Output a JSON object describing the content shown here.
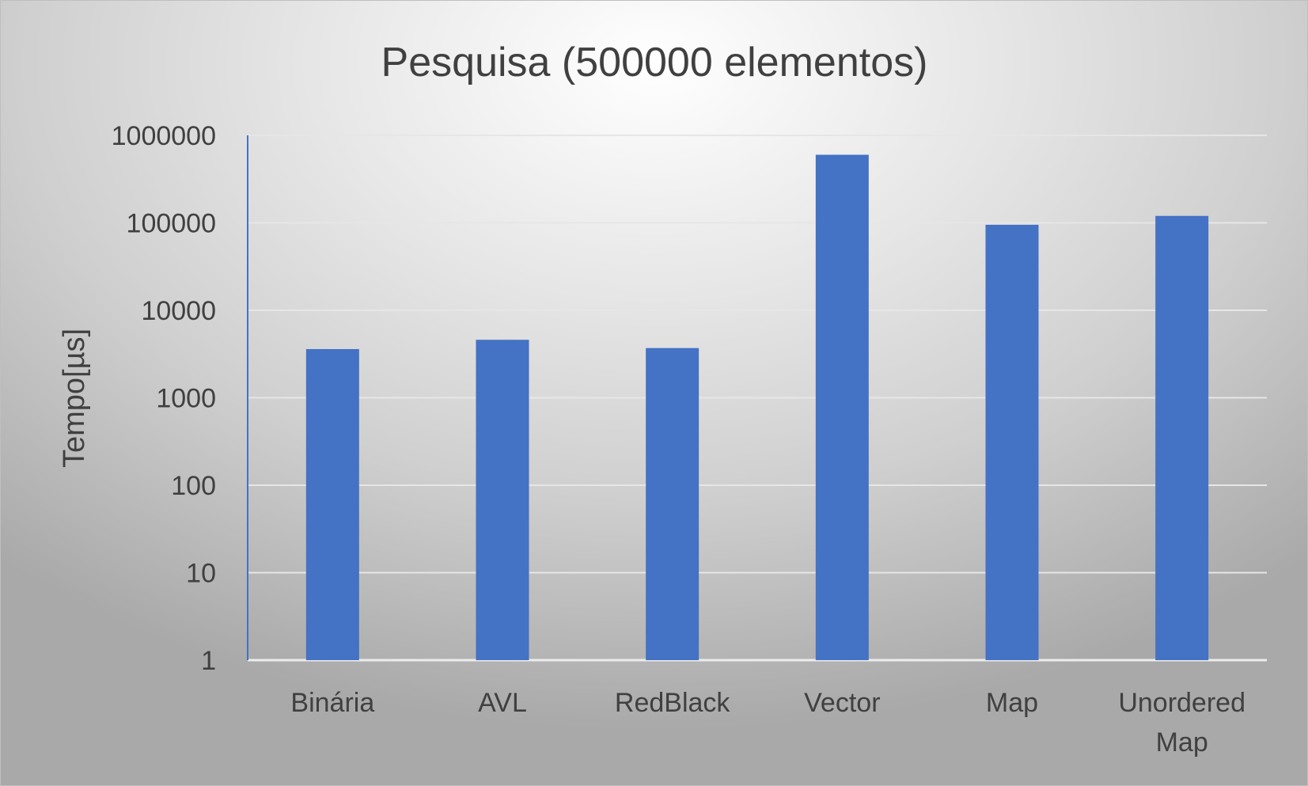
{
  "chart_data": {
    "type": "bar",
    "title": "Pesquisa (500000 elementos)",
    "xlabel": "",
    "ylabel": "Tempo[µs]",
    "yscale": "log",
    "ylim": [
      1,
      1000000
    ],
    "yticks": [
      "1",
      "10",
      "100",
      "1000",
      "10000",
      "100000",
      "1000000"
    ],
    "categories": [
      [
        "Binária"
      ],
      [
        "AVL"
      ],
      [
        "RedBlack"
      ],
      [
        "Vector"
      ],
      [
        "Map"
      ],
      [
        "Unordered",
        "Map"
      ]
    ],
    "series": [
      {
        "values": [
          3600,
          4600,
          3700,
          600000,
          95000,
          120000
        ],
        "color": "#4472c4"
      }
    ],
    "grid": true,
    "legend": "none"
  }
}
